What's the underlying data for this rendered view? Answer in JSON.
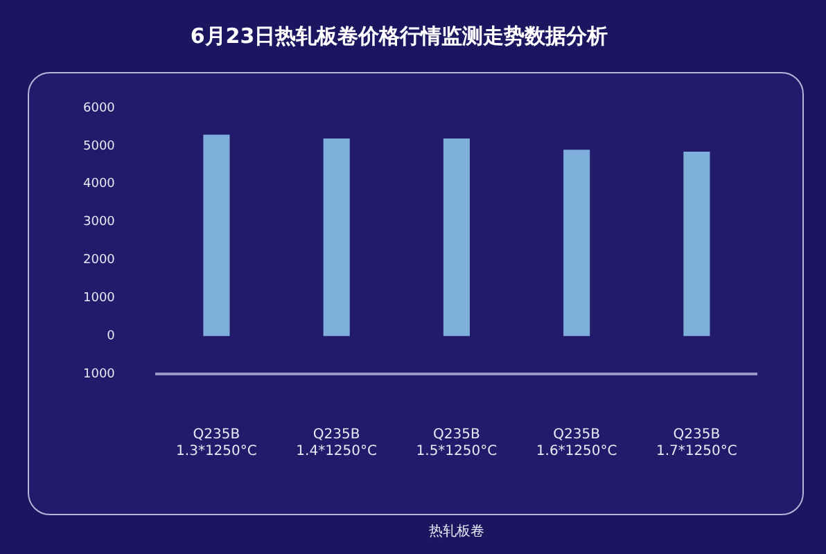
{
  "chart_data": {
    "type": "bar",
    "title": "6月23日热轧板卷价格行情监测走势数据分析",
    "xlabel": "热轧板卷",
    "categories": [
      "Q235B\n1.3*1250°C",
      "Q235B\n1.4*1250°C",
      "Q235B\n1.5*1250°C",
      "Q235B\n1.6*1250°C",
      "Q235B\n1.7*1250°C"
    ],
    "values": [
      5300,
      5200,
      5200,
      4900,
      4850
    ],
    "color": "#7fb0dc",
    "ylim": [
      -1000,
      6000
    ],
    "yticks": [
      {
        "value": -1000,
        "label": "1000"
      },
      0,
      1000,
      2000,
      3000,
      4000,
      5000,
      6000
    ]
  }
}
